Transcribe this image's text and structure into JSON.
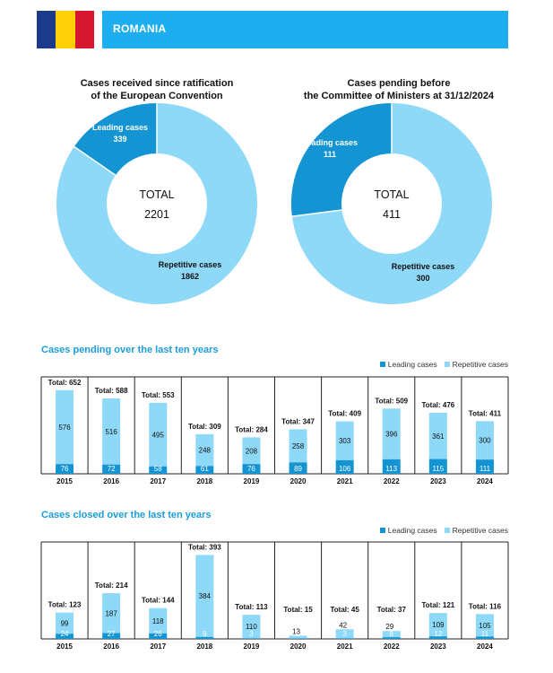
{
  "country": {
    "name": "ROMANIA",
    "flag_colors": [
      "#1b3a8a",
      "#fdd007",
      "#d7172f"
    ]
  },
  "colors": {
    "banner": "#1eaef0",
    "leading": "#1594d3",
    "repetitive": "#8ed8f8",
    "section_title": "#1a9ddb"
  },
  "donuts": [
    {
      "title_line1": "Cases received since ratification",
      "title_line2": "of the European Convention",
      "total_label": "TOTAL",
      "total": 2201,
      "leading_label": "Leading cases",
      "leading": 339,
      "repetitive_label": "Repetitive cases",
      "repetitive": 1862
    },
    {
      "title_line1": "Cases pending before",
      "title_line2": "the Committee of Ministers at 31/12/2024",
      "total_label": "TOTAL",
      "total": 411,
      "leading_label": "Leading cases",
      "leading": 111,
      "repetitive_label": "Repetitive cases",
      "repetitive": 300
    }
  ],
  "legend": {
    "leading": "Leading cases",
    "repetitive": "Repetitive cases"
  },
  "chart_data": [
    {
      "type": "bar",
      "stacked": true,
      "title": "Cases pending over the last ten years",
      "categories": [
        "2015",
        "2016",
        "2017",
        "2018",
        "2019",
        "2020",
        "2021",
        "2022",
        "2023",
        "2024"
      ],
      "series": [
        {
          "name": "Leading cases",
          "values": [
            76,
            72,
            58,
            61,
            76,
            89,
            106,
            113,
            115,
            111
          ]
        },
        {
          "name": "Repetitive cases",
          "values": [
            576,
            516,
            495,
            248,
            208,
            258,
            303,
            396,
            361,
            300
          ]
        }
      ],
      "totals": [
        652,
        588,
        553,
        309,
        284,
        347,
        409,
        509,
        476,
        411
      ],
      "total_prefix": "Total: ",
      "ylim": [
        0,
        700
      ]
    },
    {
      "type": "bar",
      "stacked": true,
      "title": "Cases closed over the last ten years",
      "categories": [
        "2015",
        "2016",
        "2017",
        "2018",
        "2019",
        "2020",
        "2021",
        "2022",
        "2023",
        "2024"
      ],
      "series": [
        {
          "name": "Leading cases",
          "values": [
            24,
            27,
            26,
            9,
            3,
            2,
            3,
            8,
            12,
            11
          ]
        },
        {
          "name": "Repetitive cases",
          "values": [
            99,
            187,
            118,
            384,
            110,
            13,
            42,
            29,
            109,
            105
          ]
        }
      ],
      "totals": [
        123,
        214,
        144,
        393,
        113,
        15,
        45,
        37,
        121,
        116
      ],
      "total_prefix": "Total: ",
      "ylim": [
        0,
        420
      ]
    }
  ]
}
